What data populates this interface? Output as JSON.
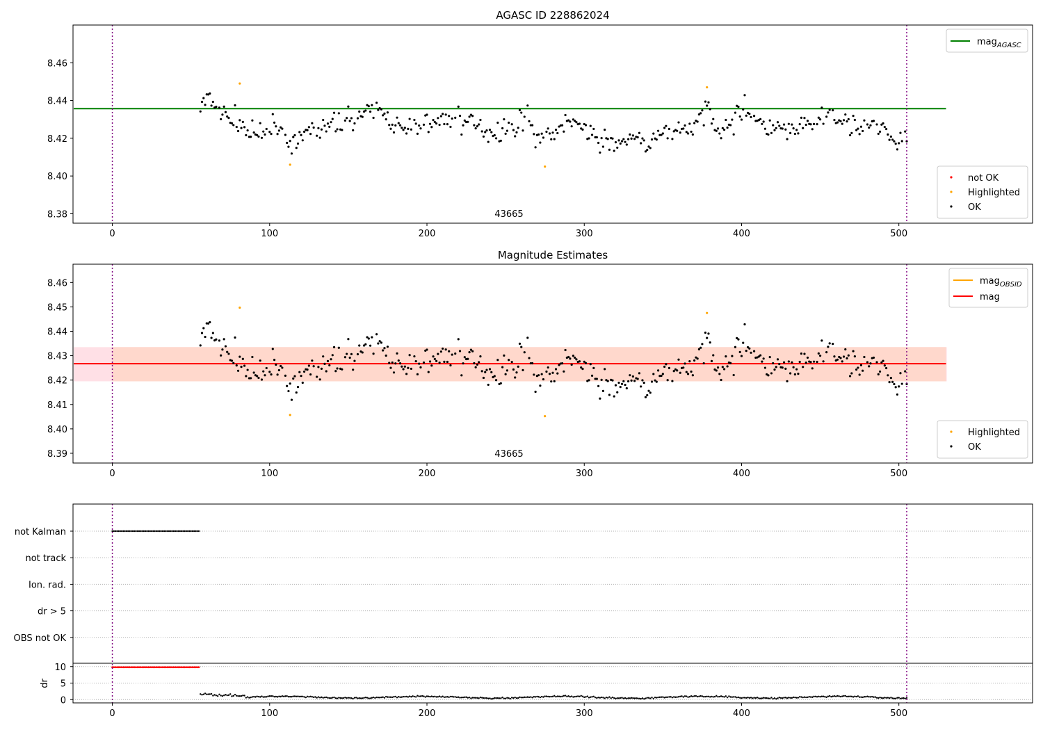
{
  "chart_data": [
    {
      "type": "scatter",
      "title": "AGASC ID 228862024",
      "annotation": "43665",
      "xlim": [
        -25,
        585
      ],
      "ylim": [
        8.375,
        8.48
      ],
      "x_ticks": [
        0,
        100,
        200,
        300,
        400,
        500
      ],
      "y_ticks": [
        8.38,
        8.4,
        8.42,
        8.44,
        8.46
      ],
      "grid": false,
      "vlines": [
        0,
        505
      ],
      "hline": {
        "y": 8.4357,
        "x": [
          -25,
          530
        ],
        "color": "#008000"
      },
      "legend_top": {
        "entries": [
          {
            "label": "mag",
            "sub": "AGASC",
            "color": "#008000"
          }
        ],
        "placement": "top-right"
      },
      "legend_bottom": {
        "entries": [
          {
            "label": "not OK",
            "color": "#ff0000"
          },
          {
            "label": "Highlighted",
            "color": "#ffa500"
          },
          {
            "label": "OK",
            "color": "#000000"
          }
        ],
        "placement": "bottom-right"
      },
      "series": [
        {
          "label": "Highlighted",
          "color": "#ffa500",
          "points": [
            [
              81,
              8.449
            ],
            [
              113,
              8.406
            ],
            [
              275,
              8.405
            ],
            [
              378,
              8.447
            ]
          ]
        }
      ]
    },
    {
      "type": "scatter",
      "title": "Magnitude Estimates",
      "annotation": "43665",
      "xlim": [
        -25,
        585
      ],
      "ylim": [
        8.386,
        8.4675
      ],
      "x_ticks": [
        0,
        100,
        200,
        300,
        400,
        500
      ],
      "y_ticks": [
        8.39,
        8.4,
        8.41,
        8.42,
        8.43,
        8.44,
        8.45,
        8.46
      ],
      "grid": false,
      "vlines": [
        0,
        505
      ],
      "band_outer": {
        "y": [
          8.4195,
          8.4335
        ],
        "x": [
          -25,
          530
        ],
        "color": "#ffe0e6"
      },
      "band_inner": {
        "y": [
          8.4195,
          8.4335
        ],
        "x": [
          -25,
          530
        ],
        "color": "#ffd8cc"
      },
      "hline": {
        "y": 8.4267,
        "x": [
          -25,
          530
        ],
        "color": "#ff0000"
      },
      "legend_top": {
        "entries": [
          {
            "label": "mag",
            "sub": "OBSID",
            "color": "#ffa500"
          },
          {
            "label": "mag",
            "color": "#ff0000"
          }
        ],
        "placement": "top-right"
      },
      "legend_bottom": {
        "entries": [
          {
            "label": "Highlighted",
            "color": "#ffa500"
          },
          {
            "label": "OK",
            "color": "#000000"
          }
        ],
        "placement": "bottom-right"
      },
      "series": [
        {
          "label": "Highlighted",
          "color": "#ffa500",
          "points": [
            [
              81,
              8.4497
            ],
            [
              113,
              8.4057
            ],
            [
              275,
              8.4052
            ],
            [
              378,
              8.4475
            ]
          ]
        }
      ]
    },
    {
      "type": "scatter",
      "title": "",
      "xlim": [
        -25,
        585
      ],
      "x_ticks": [
        0,
        100,
        200,
        300,
        400,
        500
      ],
      "flag_rows": [
        "not Kalman",
        "not track",
        "Ion. rad.",
        "dr > 5",
        "OBS not OK"
      ],
      "flag_ranges": [
        {
          "row": "not Kalman",
          "x": [
            0,
            55
          ],
          "color": "#000000"
        }
      ],
      "vlines": [
        0,
        505
      ],
      "dr_panel": {
        "ylabel": "dr",
        "ylim": [
          -1,
          11
        ],
        "y_ticks": [
          0,
          5,
          10
        ],
        "clipped": {
          "x": [
            0,
            55
          ],
          "y": 10,
          "color": "#ff0000"
        },
        "segments": [
          {
            "x": [
              56,
              84
            ],
            "y_start": 1.6,
            "y_end": 1.2
          },
          {
            "x": [
              85,
              505
            ],
            "y_mean": 0.7
          }
        ]
      }
    }
  ]
}
